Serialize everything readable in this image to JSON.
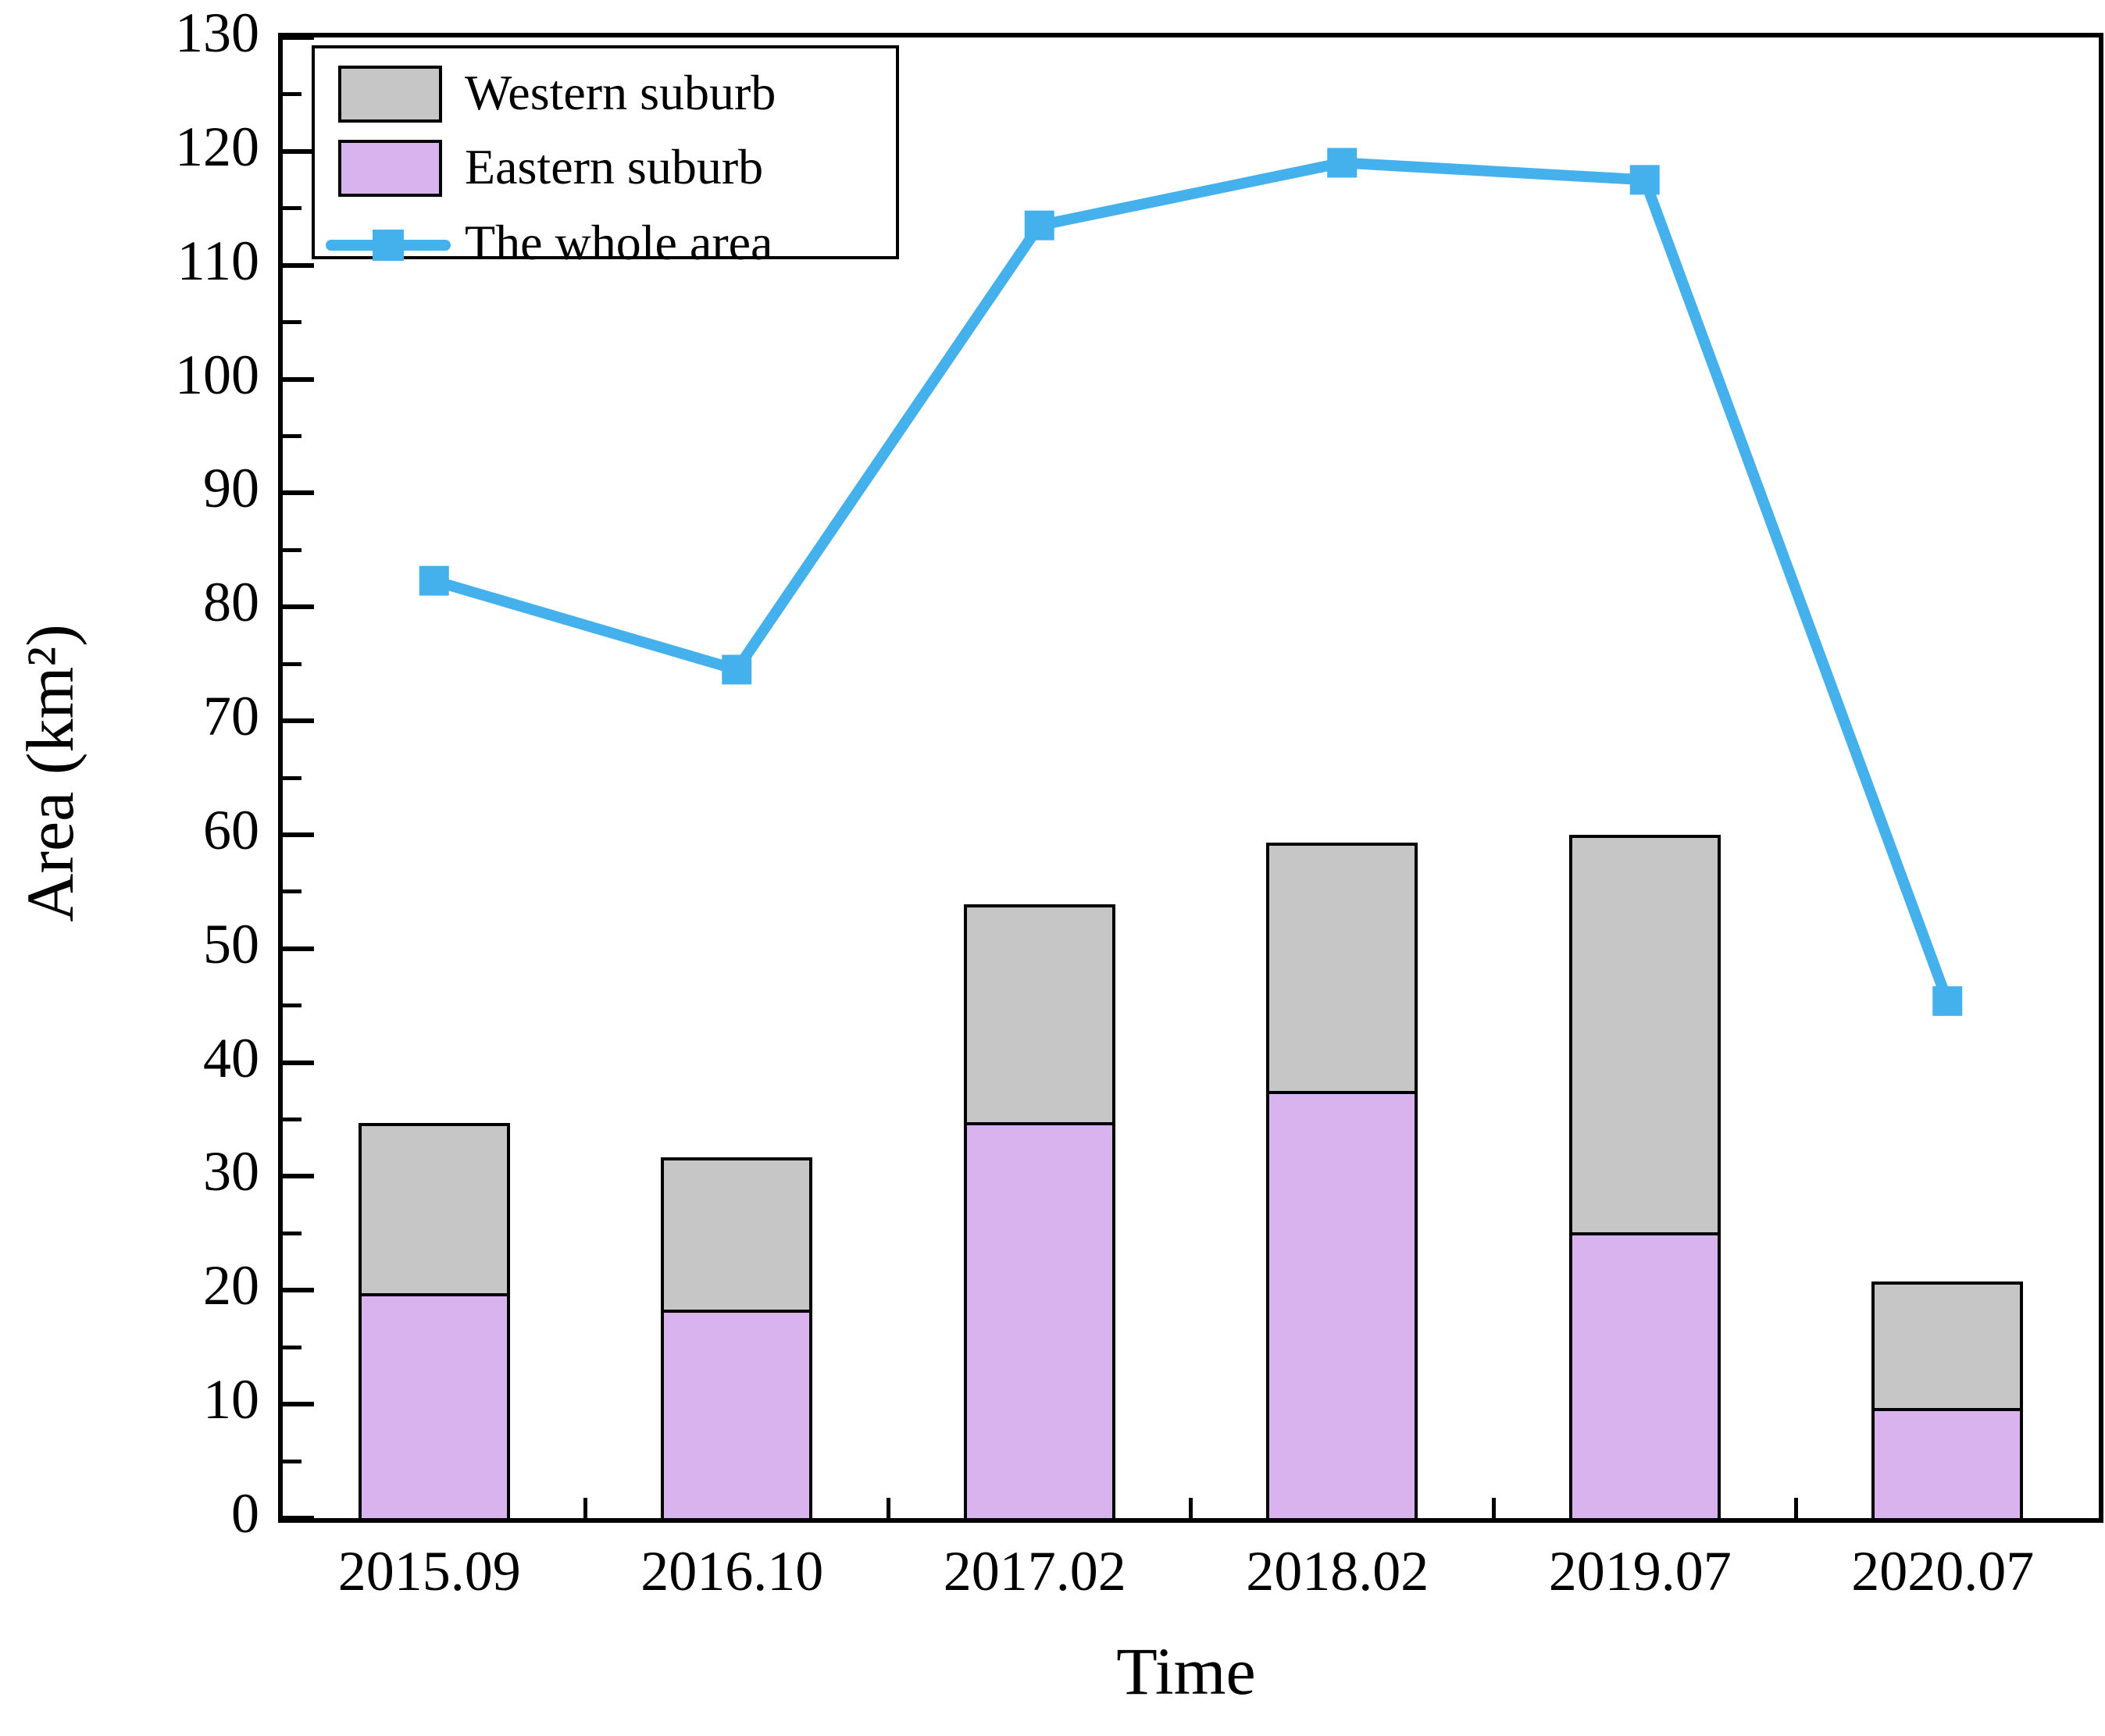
{
  "chart_data": {
    "type": "bar",
    "subtype": "stacked-bars-with-line-overlay",
    "title": "",
    "categories": [
      "2015.09",
      "2016.10",
      "2017.02",
      "2018.02",
      "2019.07",
      "2020.07"
    ],
    "series": [
      {
        "name": "Eastern suburb",
        "role": "bar-stack-bottom",
        "color": "#d9b3ee",
        "values": [
          19.5,
          18.0,
          34.5,
          37.2,
          24.8,
          9.4
        ]
      },
      {
        "name": "Western suburb",
        "role": "bar-stack-top",
        "color": "#c6c6c6",
        "values": [
          15.2,
          13.7,
          19.4,
          22.1,
          35.2,
          11.4
        ]
      },
      {
        "name": "The whole area",
        "role": "line",
        "color": "#45b1ec",
        "marker": "square",
        "values": [
          82.3,
          74.5,
          113.5,
          119.0,
          117.5,
          45.4
        ]
      }
    ],
    "stacked_totals": [
      34.7,
      31.7,
      53.9,
      59.3,
      60.0,
      20.8
    ],
    "xlabel": "Time",
    "ylabel": "Area (km²)",
    "ylim": [
      0,
      130
    ],
    "ytick_step": 10,
    "y_ticks": [
      "0",
      "10",
      "20",
      "30",
      "40",
      "50",
      "60",
      "70",
      "80",
      "90",
      "100",
      "110",
      "120",
      "130"
    ],
    "grid": false,
    "legend_position": "top-left"
  },
  "legend": {
    "items": [
      {
        "label": "Western suburb",
        "swatch_color": "#c6c6c6"
      },
      {
        "label": "Eastern suburb",
        "swatch_color": "#d9b3ee"
      },
      {
        "label": "The whole area",
        "line_color": "#45b1ec",
        "marker": "square"
      }
    ]
  },
  "axis_color": "#000000",
  "background_color": "#ffffff"
}
